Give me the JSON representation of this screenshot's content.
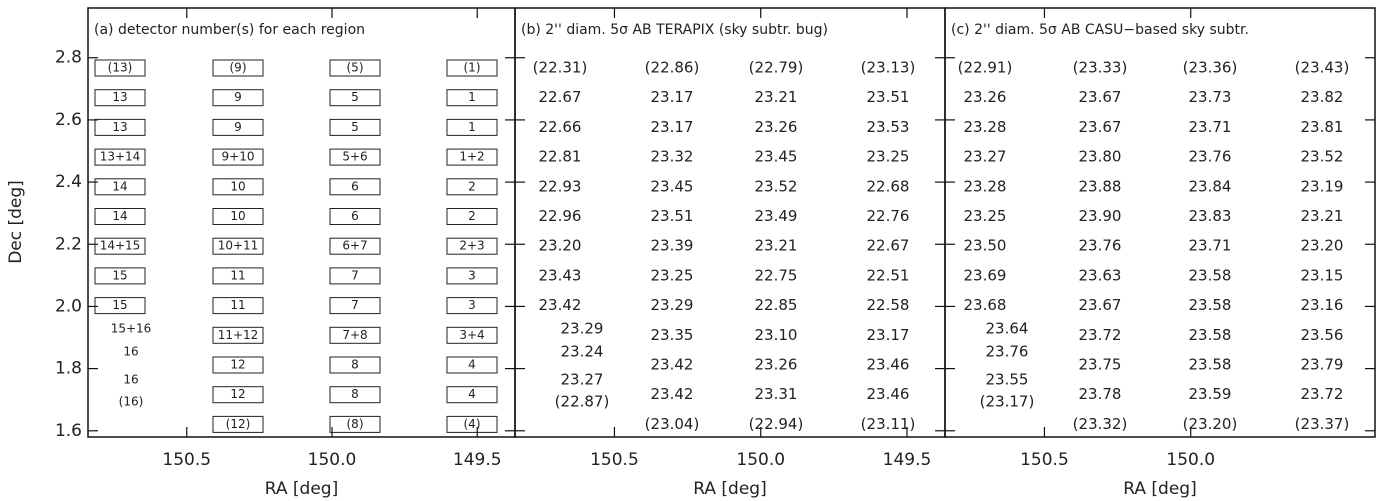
{
  "chart_data": [
    {
      "type": "grid",
      "title": "(a) detector number(s) for each region",
      "x_label": "RA [deg]",
      "y_label": "Dec [deg]",
      "boxed": true,
      "xlim": [
        150.84,
        149.37
      ],
      "xticks": [
        150.5,
        {
          "value": 150,
          "label": "150.0"
        },
        149.5
      ],
      "ylim": [
        1.58,
        2.96
      ],
      "yticks": [
        1.6,
        1.8,
        {
          "value": 2,
          "label": "2.0"
        },
        2.2,
        2.4,
        2.6,
        2.8
      ],
      "rows": [
        [
          "(13)",
          "(9)",
          "(5)",
          "(1)"
        ],
        [
          "13",
          "9",
          "5",
          "1"
        ],
        [
          "13",
          "9",
          "5",
          "1"
        ],
        [
          "13+14",
          "9+10",
          "5+6",
          "1+2"
        ],
        [
          "14",
          "10",
          "6",
          "2"
        ],
        [
          "14",
          "10",
          "6",
          "2"
        ],
        [
          "14+15",
          "10+11",
          "6+7",
          "2+3"
        ],
        [
          "15",
          "11",
          "7",
          "3"
        ],
        [
          "15",
          "11",
          "7",
          "3"
        ],
        [
          "15+16",
          "11+12",
          "7+8",
          "3+4"
        ],
        [
          "16",
          "12",
          "8",
          "4"
        ],
        [
          "16",
          "12",
          "8",
          "4"
        ],
        [
          "(16)",
          "(12)",
          "(8)",
          "(4)"
        ]
      ]
    },
    {
      "type": "grid",
      "title": "(b) 2'' diam. 5σ AB TERAPIX (sky subtr. bug)",
      "x_label": "RA [deg]",
      "boxed": false,
      "xlim": [
        150.84,
        149.37
      ],
      "xticks": [
        150.5,
        {
          "value": 150,
          "label": "150.0"
        },
        149.5
      ],
      "ylim": [
        1.58,
        2.96
      ],
      "yticks": [
        1.6,
        1.8,
        {
          "value": 2,
          "label": "2.0"
        },
        2.2,
        2.4,
        2.6,
        2.8
      ],
      "rows": [
        [
          "(22.31)",
          "(22.86)",
          "(22.79)",
          "(23.13)"
        ],
        [
          "22.67",
          "23.17",
          "23.21",
          "23.51"
        ],
        [
          "22.66",
          "23.17",
          "23.26",
          "23.53"
        ],
        [
          "22.81",
          "23.32",
          "23.45",
          "23.25"
        ],
        [
          "22.93",
          "23.45",
          "23.52",
          "22.68"
        ],
        [
          "22.96",
          "23.51",
          "23.49",
          "22.76"
        ],
        [
          "23.20",
          "23.39",
          "23.21",
          "22.67"
        ],
        [
          "23.43",
          "23.25",
          "22.75",
          "22.51"
        ],
        [
          "23.42",
          "23.29",
          "22.85",
          "22.58"
        ],
        [
          "23.29",
          "23.35",
          "23.10",
          "23.17"
        ],
        [
          "23.24",
          "23.42",
          "23.26",
          "23.46"
        ],
        [
          "23.27",
          "23.42",
          "23.31",
          "23.46"
        ],
        [
          "(22.87)",
          "(23.04)",
          "(22.94)",
          "(23.11)"
        ]
      ]
    },
    {
      "type": "grid",
      "title": "(c) 2'' diam. 5σ AB CASU−based sky subtr.",
      "x_label": "RA [deg]",
      "boxed": false,
      "xlim": [
        150.84,
        149.37
      ],
      "xticks": [
        150.5,
        {
          "value": 150,
          "label": "150.0"
        }
      ],
      "ylim": [
        1.58,
        2.96
      ],
      "yticks": [
        1.6,
        1.8,
        {
          "value": 2,
          "label": "2.0"
        },
        2.2,
        2.4,
        2.6,
        2.8
      ],
      "rows": [
        [
          "(22.91)",
          "(23.33)",
          "(23.36)",
          "(23.43)"
        ],
        [
          "23.26",
          "23.67",
          "23.73",
          "23.82"
        ],
        [
          "23.28",
          "23.67",
          "23.71",
          "23.81"
        ],
        [
          "23.27",
          "23.80",
          "23.76",
          "23.52"
        ],
        [
          "23.28",
          "23.88",
          "23.84",
          "23.19"
        ],
        [
          "23.25",
          "23.90",
          "23.83",
          "23.21"
        ],
        [
          "23.50",
          "23.76",
          "23.71",
          "23.20"
        ],
        [
          "23.69",
          "23.63",
          "23.58",
          "23.15"
        ],
        [
          "23.68",
          "23.67",
          "23.58",
          "23.16"
        ],
        [
          "23.64",
          "23.72",
          "23.58",
          "23.56"
        ],
        [
          "23.76",
          "23.75",
          "23.58",
          "23.79"
        ],
        [
          "23.55",
          "23.78",
          "23.59",
          "23.72"
        ],
        [
          "(23.17)",
          "(23.32)",
          "(23.20)",
          "(23.37)"
        ]
      ]
    }
  ]
}
